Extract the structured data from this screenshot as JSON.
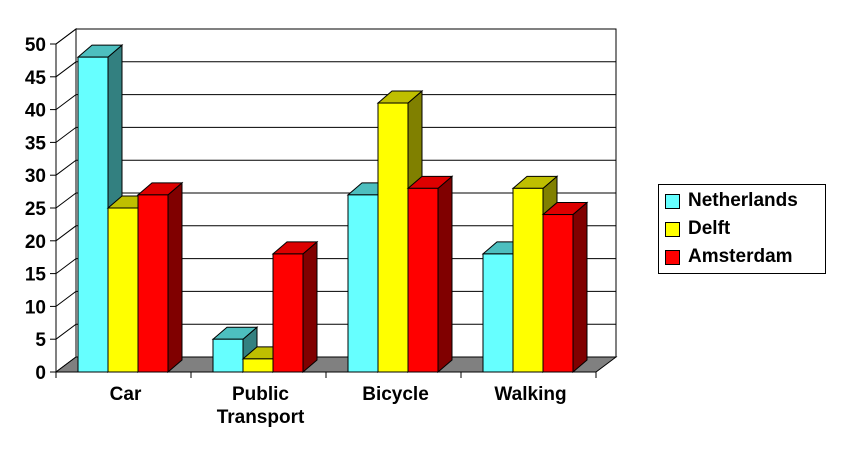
{
  "chart_data": {
    "type": "bar",
    "categories": [
      "Car",
      "Public Transport",
      "Bicycle",
      "Walking"
    ],
    "category_lines": [
      [
        "Car"
      ],
      [
        "Public",
        "Transport"
      ],
      [
        "Bicycle"
      ],
      [
        "Walking"
      ]
    ],
    "series": [
      {
        "name": "Netherlands",
        "values": [
          48,
          5,
          27,
          18
        ],
        "color": "#66FFFF",
        "top_color": "#4DBFBF",
        "side_color": "#338080"
      },
      {
        "name": "Delft",
        "values": [
          25,
          2,
          41,
          28
        ],
        "color": "#FFFF00",
        "top_color": "#BFBF00",
        "side_color": "#808000"
      },
      {
        "name": "Amsterdam",
        "values": [
          27,
          18,
          28,
          24
        ],
        "color": "#FF0000",
        "top_color": "#DD0000",
        "side_color": "#800000"
      }
    ],
    "yticks": [
      "0",
      "5",
      "10",
      "15",
      "20",
      "25",
      "30",
      "35",
      "40",
      "45",
      "50"
    ],
    "ylim": [
      0,
      50
    ],
    "title": "",
    "xlabel": "",
    "ylabel": "",
    "legend_position": "right",
    "grid": true,
    "style": "3d-clustered-column",
    "floor_color": "#808080"
  }
}
